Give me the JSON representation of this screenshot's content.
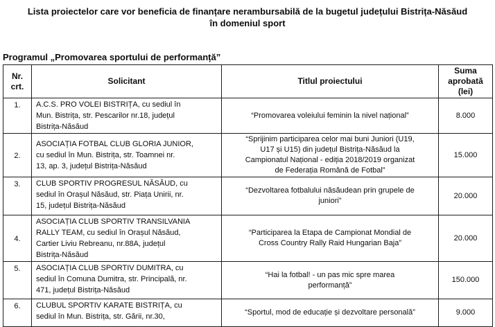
{
  "page": {
    "title": "Lista proiectelor care vor beneficia de finanțare nerambursabilă de la bugetul județului Bistrița-Năsăud\nîn domeniul sport",
    "program_label": "Programul „Promovarea sportului de performanță”"
  },
  "table": {
    "headers": {
      "nr": "Nr.\ncrt.",
      "solicitant": "Solicitant",
      "project_title": "Titlul proiectului",
      "amount": "Suma\naprobată\n(lei)"
    },
    "rows": [
      {
        "nr": "1.",
        "solicitant": "A.C.S. PRO VOLEI BISTRIȚA, cu sediul în\nMun. Bistrița, str. Pescarilor nr.18, județul\nBistrița-Năsăud",
        "project_title": "“Promovarea voleiului feminin la nivel național”",
        "amount": "8.000"
      },
      {
        "nr": "2.",
        "solicitant": "ASOCIAȚIA FOTBAL CLUB GLORIA JUNIOR,\ncu sediul în Mun. Bistrița, str. Toamnei nr.\n13, ap. 3, județul Bistrița-Năsăud",
        "project_title": "“Sprijinim participarea celor mai buni Juniori (U19,\nU17 și U15) din județul Bistrița-Năsăud la\nCampionatul Național - ediția 2018/2019 organizat\nde Federația Română de Fotbal”",
        "amount": "15.000"
      },
      {
        "nr": "3.",
        "solicitant": "CLUB SPORTIV PROGRESUL NĂSĂUD, cu\nsediul în Orașul Năsăud, str. Piața Unirii, nr.\n15, județul Bistrița-Năsăud",
        "project_title": "“Dezvoltarea fotbalului năsăudean prin grupele de\njuniori”",
        "amount": "20.000"
      },
      {
        "nr": "4.",
        "solicitant": "ASOCIAȚIA CLUB SPORTIV TRANSILVANIA\nRALLY TEAM, cu sediul în Orașul Năsăud,\nCartier Liviu Rebreanu, nr.88A, județul\nBistrița-Năsăud",
        "project_title": "“Participarea la Etapa de Campionat Mondial de\nCross Country Rally Raid Hungarian Baja”",
        "amount": "20.000"
      },
      {
        "nr": "5.",
        "solicitant": "ASOCIAȚIA CLUB SPORTIV DUMITRA, cu\nsediul în Comuna Dumitra, str. Principală, nr.\n471, județul Bistrița-Năsăud",
        "project_title": "“Hai la fotbal! - un pas mic spre marea\nperformanță”",
        "amount": "150.000"
      },
      {
        "nr": "6.",
        "solicitant": "CLUBUL SPORTIV KARATE BISTRIȚA, cu\nsediul în Mun. Bistrița, str. Gării, nr.30,",
        "project_title": "“Sportul, mod de educație și dezvoltare personală”",
        "amount": "9.000"
      }
    ]
  }
}
